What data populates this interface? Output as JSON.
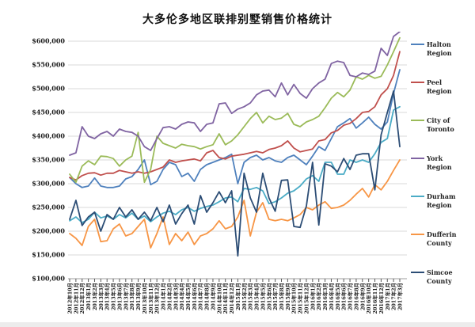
{
  "chart_data": {
    "type": "line",
    "title": "大多伦多地区联排别墅销售价格统计",
    "ylabel": "",
    "xlabel": "",
    "ylim": [
      100000,
      600000
    ],
    "y_tick_step": 50000,
    "grid": true,
    "legend_position": "right",
    "y_ticks": [
      "$600,000",
      "$550,000",
      "$500,000",
      "$450,000",
      "$400,000",
      "$350,000",
      "$300,000",
      "$250,000",
      "$200,000",
      "$150,000",
      "$100,000"
    ],
    "x_labels": [
      "2012年10月",
      "2012年11月",
      "2012年12月",
      "2013年1月",
      "2013年2月",
      "2013年3月",
      "2013年4月",
      "2013年5月",
      "2013年6月",
      "2013年7月",
      "2013年8月",
      "2013年9月",
      "2013年10月",
      "2013年11月",
      "2013年12月",
      "2014年1月",
      "2014年2月",
      "2014年3月",
      "2014年4月",
      "2014年5月",
      "2014年6月",
      "2014年7月",
      "2014年8月",
      "2014年9月",
      "2014年10月",
      "2014年11月",
      "2014年12月",
      "2015年1月",
      "2015年2月",
      "2015年3月",
      "2015年4月",
      "2015年5月",
      "2015年6月",
      "2015年7月",
      "2015年8月",
      "2015年9月",
      "2015年10月",
      "2015年11月",
      "2015年12月",
      "2016年1月",
      "2016年2月",
      "2016年3月",
      "2016年4月",
      "2016年5月",
      "2016年6月",
      "2016年7月",
      "2016年8月",
      "2016年9月",
      "2016年10月",
      "2016年11月",
      "2016年12月",
      "2017年1月",
      "2017年2月",
      "2017年3月"
    ],
    "series": [
      {
        "name": "Halton\nRegion",
        "color": "#4F81BD",
        "values": [
          313000,
          300000,
          292000,
          295000,
          312000,
          295000,
          292000,
          292000,
          295000,
          310000,
          315000,
          330000,
          350000,
          298000,
          305000,
          330000,
          345000,
          340000,
          315000,
          322000,
          305000,
          330000,
          340000,
          345000,
          350000,
          355000,
          362000,
          300000,
          345000,
          355000,
          360000,
          350000,
          355000,
          348000,
          345000,
          355000,
          360000,
          350000,
          340000,
          358000,
          378000,
          370000,
          395000,
          420000,
          428000,
          437000,
          417000,
          428000,
          440000,
          425000,
          415000,
          430000,
          490000,
          540000
        ]
      },
      {
        "name": "Peel\nRegion",
        "color": "#C0504D",
        "values": [
          313000,
          308000,
          317000,
          322000,
          323000,
          318000,
          322000,
          322000,
          328000,
          325000,
          322000,
          325000,
          322000,
          325000,
          330000,
          335000,
          350000,
          345000,
          348000,
          350000,
          352000,
          348000,
          365000,
          370000,
          355000,
          352000,
          358000,
          360000,
          362000,
          365000,
          368000,
          365000,
          372000,
          375000,
          380000,
          390000,
          375000,
          367000,
          370000,
          373000,
          390000,
          393000,
          407000,
          412000,
          423000,
          427000,
          437000,
          450000,
          452000,
          462000,
          487000,
          500000,
          528000,
          578000
        ]
      },
      {
        "name": "City of\nToronto",
        "color": "#9BBB59",
        "values": [
          320000,
          303000,
          337000,
          348000,
          340000,
          358000,
          357000,
          353000,
          337000,
          350000,
          358000,
          408000,
          303000,
          330000,
          400000,
          385000,
          380000,
          375000,
          383000,
          380000,
          378000,
          373000,
          378000,
          382000,
          405000,
          382000,
          390000,
          403000,
          420000,
          437000,
          450000,
          428000,
          442000,
          435000,
          438000,
          448000,
          425000,
          420000,
          430000,
          435000,
          442000,
          460000,
          480000,
          492000,
          483000,
          497000,
          525000,
          520000,
          528000,
          522000,
          526000,
          550000,
          578000,
          607000
        ]
      },
      {
        "name": "York\nRegion",
        "color": "#8064A2",
        "values": [
          360000,
          365000,
          420000,
          400000,
          395000,
          405000,
          410000,
          400000,
          415000,
          410000,
          408000,
          400000,
          378000,
          370000,
          395000,
          418000,
          420000,
          415000,
          425000,
          430000,
          428000,
          410000,
          425000,
          428000,
          468000,
          470000,
          448000,
          457000,
          462000,
          470000,
          487000,
          495000,
          497000,
          483000,
          512000,
          487000,
          509000,
          490000,
          480000,
          500000,
          512000,
          520000,
          553000,
          558000,
          555000,
          528000,
          525000,
          533000,
          530000,
          537000,
          585000,
          570000,
          610000,
          620000
        ]
      },
      {
        "name": "Durham\nRegion",
        "color": "#4BACC6",
        "values": [
          222000,
          230000,
          218000,
          225000,
          240000,
          228000,
          232000,
          225000,
          235000,
          228000,
          238000,
          225000,
          232000,
          220000,
          230000,
          238000,
          242000,
          235000,
          245000,
          250000,
          242000,
          248000,
          252000,
          255000,
          262000,
          270000,
          272000,
          262000,
          290000,
          288000,
          292000,
          285000,
          258000,
          262000,
          270000,
          280000,
          285000,
          295000,
          310000,
          317000,
          305000,
          345000,
          345000,
          320000,
          320000,
          350000,
          345000,
          350000,
          345000,
          363000,
          387000,
          395000,
          455000,
          462000
        ]
      },
      {
        "name": "Dufferin\nCounty",
        "color": "#F79646",
        "values": [
          195000,
          185000,
          170000,
          210000,
          225000,
          178000,
          180000,
          205000,
          215000,
          190000,
          195000,
          210000,
          225000,
          165000,
          195000,
          230000,
          172000,
          195000,
          180000,
          198000,
          172000,
          190000,
          195000,
          205000,
          222000,
          205000,
          210000,
          230000,
          265000,
          190000,
          240000,
          260000,
          225000,
          222000,
          225000,
          222000,
          228000,
          235000,
          250000,
          245000,
          255000,
          262000,
          248000,
          250000,
          255000,
          265000,
          278000,
          290000,
          272000,
          298000,
          287000,
          305000,
          328000,
          350000
        ]
      },
      {
        "name": "Simcoe\nCounty",
        "color": "#2C4D75",
        "values": [
          225000,
          265000,
          212000,
          230000,
          240000,
          200000,
          235000,
          225000,
          250000,
          230000,
          245000,
          225000,
          240000,
          222000,
          250000,
          220000,
          255000,
          215000,
          237000,
          255000,
          215000,
          275000,
          240000,
          260000,
          283000,
          260000,
          285000,
          148000,
          322000,
          270000,
          240000,
          322000,
          270000,
          242000,
          307000,
          308000,
          210000,
          208000,
          253000,
          345000,
          213000,
          342000,
          337000,
          325000,
          353000,
          330000,
          360000,
          363000,
          363000,
          287000,
          403000,
          450000,
          495000,
          378000
        ]
      }
    ],
    "colors": {
      "gridline": "#d9d9d9",
      "axis": "#9e9e9e",
      "tick": "#595959",
      "text": "#1a1a1a"
    }
  }
}
